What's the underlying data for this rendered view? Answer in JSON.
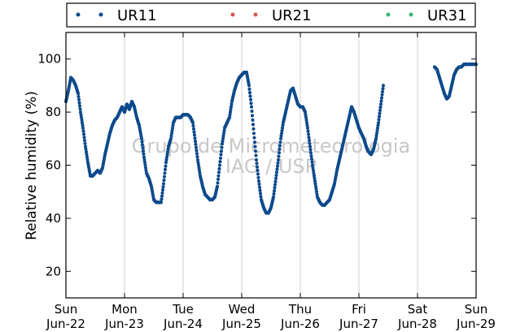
{
  "chart_data": {
    "type": "scatter",
    "ylabel": "Relative humidity (%)",
    "ylim": [
      10,
      110
    ],
    "yticks": [
      20,
      40,
      60,
      80,
      100
    ],
    "xlim": [
      "2016-06-22",
      "2016-06-29"
    ],
    "xticks": [
      {
        "day": "Sun",
        "date": "Jun-22"
      },
      {
        "day": "Mon",
        "date": "Jun-23"
      },
      {
        "day": "Tue",
        "date": "Jun-24"
      },
      {
        "day": "Wed",
        "date": "Jun-25"
      },
      {
        "day": "Thu",
        "date": "Jun-26"
      },
      {
        "day": "Fri",
        "date": "Jun-27"
      },
      {
        "day": "Sat",
        "date": "Jun-28"
      },
      {
        "day": "Sun",
        "date": "Jun-29"
      }
    ],
    "grid": "vertical",
    "legend_position": "top",
    "watermark": [
      "Grupo de Micrometeorologia",
      "IAG / USP"
    ],
    "series": [
      {
        "name": "UR11",
        "color": "#0d4a8c",
        "points": [
          [
            "2016-06-22 00:00",
            84
          ],
          [
            "2016-06-22 01:00",
            88
          ],
          [
            "2016-06-22 02:00",
            93
          ],
          [
            "2016-06-22 03:00",
            92
          ],
          [
            "2016-06-22 04:00",
            90
          ],
          [
            "2016-06-22 05:00",
            87
          ],
          [
            "2016-06-22 06:00",
            80
          ],
          [
            "2016-06-22 07:00",
            74
          ],
          [
            "2016-06-22 08:00",
            67
          ],
          [
            "2016-06-22 09:00",
            61
          ],
          [
            "2016-06-22 10:00",
            56
          ],
          [
            "2016-06-22 11:00",
            56
          ],
          [
            "2016-06-22 12:00",
            57
          ],
          [
            "2016-06-22 13:00",
            58
          ],
          [
            "2016-06-22 14:00",
            57
          ],
          [
            "2016-06-22 15:00",
            59
          ],
          [
            "2016-06-22 16:00",
            64
          ],
          [
            "2016-06-22 17:00",
            68
          ],
          [
            "2016-06-22 18:00",
            72
          ],
          [
            "2016-06-22 19:00",
            75
          ],
          [
            "2016-06-22 20:00",
            77
          ],
          [
            "2016-06-22 21:00",
            78
          ],
          [
            "2016-06-22 22:00",
            80
          ],
          [
            "2016-06-22 23:00",
            82
          ],
          [
            "2016-06-23 00:00",
            80
          ],
          [
            "2016-06-23 01:00",
            83
          ],
          [
            "2016-06-23 02:00",
            81
          ],
          [
            "2016-06-23 03:00",
            84
          ],
          [
            "2016-06-23 04:00",
            82
          ],
          [
            "2016-06-23 05:00",
            78
          ],
          [
            "2016-06-23 06:00",
            75
          ],
          [
            "2016-06-23 07:00",
            70
          ],
          [
            "2016-06-23 08:00",
            63
          ],
          [
            "2016-06-23 09:00",
            57
          ],
          [
            "2016-06-23 10:00",
            55
          ],
          [
            "2016-06-23 11:00",
            52
          ],
          [
            "2016-06-23 12:00",
            47
          ],
          [
            "2016-06-23 13:00",
            46
          ],
          [
            "2016-06-23 14:00",
            46
          ],
          [
            "2016-06-23 15:00",
            46
          ],
          [
            "2016-06-23 16:00",
            53
          ],
          [
            "2016-06-23 17:00",
            61
          ],
          [
            "2016-06-23 18:00",
            67
          ],
          [
            "2016-06-23 19:00",
            70
          ],
          [
            "2016-06-23 20:00",
            76
          ],
          [
            "2016-06-23 21:00",
            78
          ],
          [
            "2016-06-23 22:00",
            78
          ],
          [
            "2016-06-23 23:00",
            78
          ],
          [
            "2016-06-24 00:00",
            79
          ],
          [
            "2016-06-24 01:00",
            79
          ],
          [
            "2016-06-24 02:00",
            79
          ],
          [
            "2016-06-24 03:00",
            78
          ],
          [
            "2016-06-24 04:00",
            76
          ],
          [
            "2016-06-24 05:00",
            69
          ],
          [
            "2016-06-24 06:00",
            62
          ],
          [
            "2016-06-24 07:00",
            56
          ],
          [
            "2016-06-24 08:00",
            52
          ],
          [
            "2016-06-24 09:00",
            49
          ],
          [
            "2016-06-24 10:00",
            48
          ],
          [
            "2016-06-24 11:00",
            47
          ],
          [
            "2016-06-24 12:00",
            47
          ],
          [
            "2016-06-24 13:00",
            48
          ],
          [
            "2016-06-24 14:00",
            52
          ],
          [
            "2016-06-24 15:00",
            60
          ],
          [
            "2016-06-24 16:00",
            68
          ],
          [
            "2016-06-24 17:00",
            74
          ],
          [
            "2016-06-24 18:00",
            76
          ],
          [
            "2016-06-24 19:00",
            78
          ],
          [
            "2016-06-24 20:00",
            84
          ],
          [
            "2016-06-24 21:00",
            88
          ],
          [
            "2016-06-24 22:00",
            91
          ],
          [
            "2016-06-24 23:00",
            93
          ],
          [
            "2016-06-25 00:00",
            94
          ],
          [
            "2016-06-25 01:00",
            95
          ],
          [
            "2016-06-25 02:00",
            95
          ],
          [
            "2016-06-25 03:00",
            90
          ],
          [
            "2016-06-25 04:00",
            82
          ],
          [
            "2016-06-25 05:00",
            72
          ],
          [
            "2016-06-25 06:00",
            62
          ],
          [
            "2016-06-25 07:00",
            54
          ],
          [
            "2016-06-25 08:00",
            47
          ],
          [
            "2016-06-25 09:00",
            44
          ],
          [
            "2016-06-25 10:00",
            42
          ],
          [
            "2016-06-25 11:00",
            42
          ],
          [
            "2016-06-25 12:00",
            44
          ],
          [
            "2016-06-25 13:00",
            48
          ],
          [
            "2016-06-25 14:00",
            55
          ],
          [
            "2016-06-25 15:00",
            62
          ],
          [
            "2016-06-25 16:00",
            70
          ],
          [
            "2016-06-25 17:00",
            76
          ],
          [
            "2016-06-25 18:00",
            80
          ],
          [
            "2016-06-25 19:00",
            84
          ],
          [
            "2016-06-25 20:00",
            88
          ],
          [
            "2016-06-25 21:00",
            89
          ],
          [
            "2016-06-25 22:00",
            86
          ],
          [
            "2016-06-25 23:00",
            83
          ],
          [
            "2016-06-26 00:00",
            82
          ],
          [
            "2016-06-26 01:00",
            82
          ],
          [
            "2016-06-26 02:00",
            80
          ],
          [
            "2016-06-26 03:00",
            74
          ],
          [
            "2016-06-26 04:00",
            67
          ],
          [
            "2016-06-26 05:00",
            60
          ],
          [
            "2016-06-26 06:00",
            54
          ],
          [
            "2016-06-26 07:00",
            48
          ],
          [
            "2016-06-26 08:00",
            46
          ],
          [
            "2016-06-26 09:00",
            45
          ],
          [
            "2016-06-26 10:00",
            45
          ],
          [
            "2016-06-26 11:00",
            46
          ],
          [
            "2016-06-26 12:00",
            47
          ],
          [
            "2016-06-26 13:00",
            50
          ],
          [
            "2016-06-26 14:00",
            53
          ],
          [
            "2016-06-26 15:00",
            58
          ],
          [
            "2016-06-26 16:00",
            62
          ],
          [
            "2016-06-26 17:00",
            66
          ],
          [
            "2016-06-26 18:00",
            70
          ],
          [
            "2016-06-26 19:00",
            74
          ],
          [
            "2016-06-26 20:00",
            78
          ],
          [
            "2016-06-26 21:00",
            82
          ],
          [
            "2016-06-26 22:00",
            80
          ],
          [
            "2016-06-26 23:00",
            77
          ],
          [
            "2016-06-27 00:00",
            74
          ],
          [
            "2016-06-27 01:00",
            72
          ],
          [
            "2016-06-27 02:00",
            70
          ],
          [
            "2016-06-27 03:00",
            67
          ],
          [
            "2016-06-27 04:00",
            65
          ],
          [
            "2016-06-27 05:00",
            64
          ],
          [
            "2016-06-27 06:00",
            66
          ],
          [
            "2016-06-27 07:00",
            70
          ],
          [
            "2016-06-27 08:00",
            76
          ],
          [
            "2016-06-27 09:00",
            83
          ],
          [
            "2016-06-27 10:00",
            90
          ],
          [
            "2016-06-28 07:00",
            97
          ],
          [
            "2016-06-28 08:00",
            96
          ],
          [
            "2016-06-28 09:00",
            93
          ],
          [
            "2016-06-28 10:00",
            90
          ],
          [
            "2016-06-28 11:00",
            87
          ],
          [
            "2016-06-28 12:00",
            85
          ],
          [
            "2016-06-28 13:00",
            86
          ],
          [
            "2016-06-28 14:00",
            90
          ],
          [
            "2016-06-28 15:00",
            94
          ],
          [
            "2016-06-28 16:00",
            96
          ],
          [
            "2016-06-28 17:00",
            97
          ],
          [
            "2016-06-28 18:00",
            97
          ],
          [
            "2016-06-28 19:00",
            98
          ],
          [
            "2016-06-28 20:00",
            98
          ],
          [
            "2016-06-28 21:00",
            98
          ],
          [
            "2016-06-28 22:00",
            98
          ],
          [
            "2016-06-28 23:00",
            98
          ],
          [
            "2016-06-29 00:00",
            98
          ]
        ]
      },
      {
        "name": "UR21",
        "color": "#d9534f",
        "points": []
      },
      {
        "name": "UR31",
        "color": "#3cb371",
        "points": []
      }
    ]
  }
}
